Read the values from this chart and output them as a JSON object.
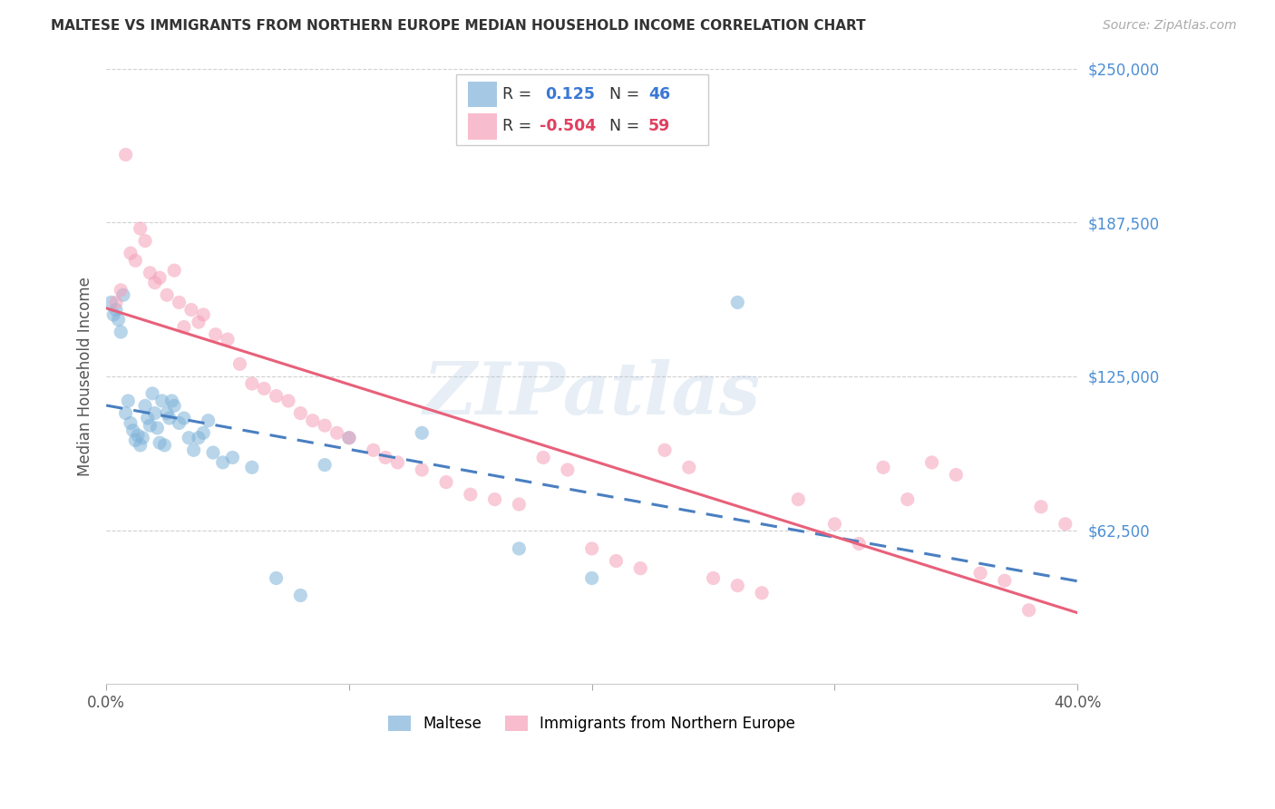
{
  "title": "MALTESE VS IMMIGRANTS FROM NORTHERN EUROPE MEDIAN HOUSEHOLD INCOME CORRELATION CHART",
  "source": "Source: ZipAtlas.com",
  "ylabel": "Median Household Income",
  "xlim": [
    0.0,
    0.4
  ],
  "ylim": [
    0,
    250000
  ],
  "yticks": [
    0,
    62500,
    125000,
    187500,
    250000
  ],
  "ytick_labels": [
    "",
    "$62,500",
    "$125,000",
    "$187,500",
    "$250,000"
  ],
  "xticks": [
    0.0,
    0.1,
    0.2,
    0.3,
    0.4
  ],
  "xtick_labels": [
    "0.0%",
    "",
    "",
    "",
    "40.0%"
  ],
  "background_color": "#ffffff",
  "grid_color": "#d0d0d0",
  "watermark_text": "ZIPatlas",
  "watermark_color": "#aac4e0",
  "R1": 0.125,
  "N1": 46,
  "R2": -0.504,
  "N2": 59,
  "blue_color": "#7fb3d9",
  "pink_color": "#f5a0b8",
  "blue_line_color": "#4a7fc1",
  "pink_line_color": "#e8607a",
  "blue_scatter_x": [
    0.002,
    0.003,
    0.004,
    0.005,
    0.006,
    0.007,
    0.008,
    0.009,
    0.01,
    0.011,
    0.012,
    0.013,
    0.014,
    0.015,
    0.016,
    0.017,
    0.018,
    0.019,
    0.02,
    0.021,
    0.022,
    0.023,
    0.024,
    0.025,
    0.026,
    0.027,
    0.028,
    0.03,
    0.032,
    0.034,
    0.036,
    0.038,
    0.04,
    0.042,
    0.044,
    0.048,
    0.052,
    0.06,
    0.07,
    0.08,
    0.09,
    0.1,
    0.13,
    0.17,
    0.2,
    0.26
  ],
  "blue_scatter_y": [
    155000,
    150000,
    152000,
    148000,
    143000,
    158000,
    110000,
    115000,
    106000,
    103000,
    99000,
    101000,
    97000,
    100000,
    113000,
    108000,
    105000,
    118000,
    110000,
    104000,
    98000,
    115000,
    97000,
    110000,
    108000,
    115000,
    113000,
    106000,
    108000,
    100000,
    95000,
    100000,
    102000,
    107000,
    94000,
    90000,
    92000,
    88000,
    43000,
    36000,
    89000,
    100000,
    102000,
    55000,
    43000,
    155000
  ],
  "pink_scatter_x": [
    0.004,
    0.006,
    0.008,
    0.01,
    0.012,
    0.014,
    0.016,
    0.018,
    0.02,
    0.022,
    0.025,
    0.028,
    0.03,
    0.032,
    0.035,
    0.038,
    0.04,
    0.045,
    0.05,
    0.055,
    0.06,
    0.065,
    0.07,
    0.075,
    0.08,
    0.085,
    0.09,
    0.095,
    0.1,
    0.11,
    0.115,
    0.12,
    0.13,
    0.14,
    0.15,
    0.16,
    0.17,
    0.18,
    0.19,
    0.2,
    0.21,
    0.22,
    0.23,
    0.24,
    0.25,
    0.26,
    0.27,
    0.285,
    0.3,
    0.31,
    0.32,
    0.33,
    0.34,
    0.35,
    0.36,
    0.37,
    0.38,
    0.385,
    0.395
  ],
  "pink_scatter_y": [
    155000,
    160000,
    215000,
    175000,
    172000,
    185000,
    180000,
    167000,
    163000,
    165000,
    158000,
    168000,
    155000,
    145000,
    152000,
    147000,
    150000,
    142000,
    140000,
    130000,
    122000,
    120000,
    117000,
    115000,
    110000,
    107000,
    105000,
    102000,
    100000,
    95000,
    92000,
    90000,
    87000,
    82000,
    77000,
    75000,
    73000,
    92000,
    87000,
    55000,
    50000,
    47000,
    95000,
    88000,
    43000,
    40000,
    37000,
    75000,
    65000,
    57000,
    88000,
    75000,
    90000,
    85000,
    45000,
    42000,
    30000,
    72000,
    65000
  ],
  "marker_size": 120
}
